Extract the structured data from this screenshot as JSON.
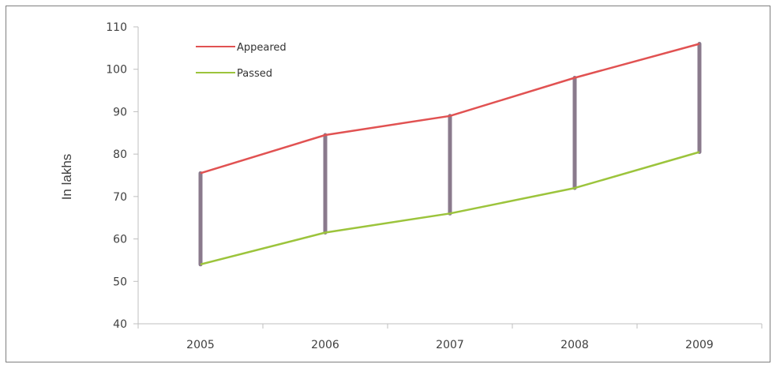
{
  "chart_data": {
    "type": "line",
    "ylabel": "In lakhs",
    "xlabel": "",
    "categories": [
      "2005",
      "2006",
      "2007",
      "2008",
      "2009"
    ],
    "ylim": [
      40,
      110
    ],
    "yticks": [
      40,
      50,
      60,
      70,
      80,
      90,
      100,
      110
    ],
    "grid": false,
    "legend": "top-left",
    "series": [
      {
        "name": "Appeared",
        "values": [
          75.5,
          84.5,
          89,
          98,
          106
        ],
        "color": "#e15252"
      },
      {
        "name": "Passed",
        "values": [
          54,
          61.5,
          66,
          72,
          80.5
        ],
        "color": "#9cc43c"
      }
    ],
    "gap_marker_color": "#8a7a8c"
  }
}
